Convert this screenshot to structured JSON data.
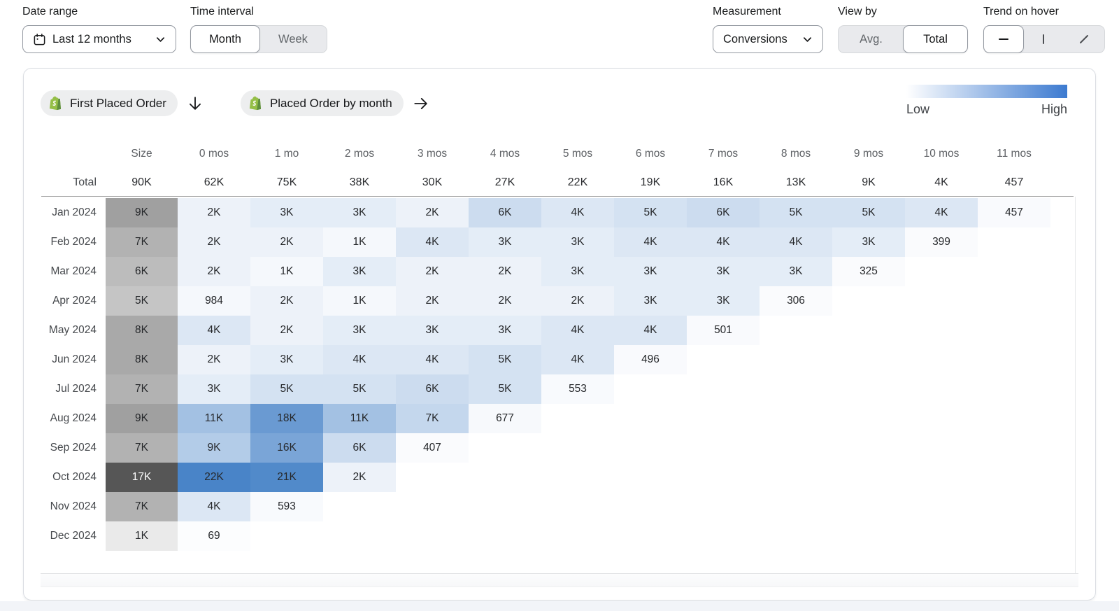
{
  "topbar": {
    "date_range": {
      "label": "Date range",
      "value": "Last 12 months"
    },
    "time_interval": {
      "label": "Time interval",
      "month": "Month",
      "week": "Week",
      "selected": "Month"
    },
    "measurement": {
      "label": "Measurement",
      "value": "Conversions"
    },
    "view_by": {
      "label": "View by",
      "avg": "Avg.",
      "total": "Total",
      "selected": "Total"
    },
    "trend_on_hover": {
      "label": "Trend on hover",
      "options": [
        "line",
        "bar",
        "slope"
      ],
      "selected": "line"
    }
  },
  "panel": {
    "cohort_chip": "First Placed Order",
    "event_chip": "Placed Order by month",
    "legend": {
      "low": "Low",
      "high": "High",
      "gradient_from": "#ffffff",
      "gradient_to": "#3c7ad0"
    }
  },
  "chart_data": {
    "type": "heatmap",
    "columns": [
      "Size",
      "0 mos",
      "1 mo",
      "2 mos",
      "3 mos",
      "4 mos",
      "5 mos",
      "6 mos",
      "7 mos",
      "8 mos",
      "9 mos",
      "10 mos",
      "11 mos"
    ],
    "total_label": "Total",
    "totals": [
      "90K",
      "62K",
      "75K",
      "38K",
      "30K",
      "27K",
      "22K",
      "19K",
      "16K",
      "13K",
      "9K",
      "4K",
      "457"
    ],
    "rows": [
      {
        "label": "Jan 2024",
        "size": "9K",
        "cells": [
          "2K",
          "3K",
          "3K",
          "2K",
          "6K",
          "4K",
          "5K",
          "6K",
          "5K",
          "5K",
          "4K",
          "457"
        ]
      },
      {
        "label": "Feb 2024",
        "size": "7K",
        "cells": [
          "2K",
          "2K",
          "1K",
          "4K",
          "3K",
          "3K",
          "4K",
          "4K",
          "4K",
          "3K",
          "399"
        ]
      },
      {
        "label": "Mar 2024",
        "size": "6K",
        "cells": [
          "2K",
          "1K",
          "3K",
          "2K",
          "2K",
          "3K",
          "3K",
          "3K",
          "3K",
          "325"
        ]
      },
      {
        "label": "Apr 2024",
        "size": "5K",
        "cells": [
          "984",
          "2K",
          "1K",
          "2K",
          "2K",
          "2K",
          "3K",
          "3K",
          "306"
        ]
      },
      {
        "label": "May 2024",
        "size": "8K",
        "cells": [
          "4K",
          "2K",
          "3K",
          "3K",
          "3K",
          "4K",
          "4K",
          "501"
        ]
      },
      {
        "label": "Jun 2024",
        "size": "8K",
        "cells": [
          "2K",
          "3K",
          "4K",
          "4K",
          "5K",
          "4K",
          "496"
        ]
      },
      {
        "label": "Jul 2024",
        "size": "7K",
        "cells": [
          "3K",
          "5K",
          "5K",
          "6K",
          "5K",
          "553"
        ]
      },
      {
        "label": "Aug 2024",
        "size": "9K",
        "cells": [
          "11K",
          "18K",
          "11K",
          "7K",
          "677"
        ]
      },
      {
        "label": "Sep 2024",
        "size": "7K",
        "cells": [
          "9K",
          "16K",
          "6K",
          "407"
        ]
      },
      {
        "label": "Oct 2024",
        "size": "17K",
        "cells": [
          "22K",
          "21K",
          "2K"
        ]
      },
      {
        "label": "Nov 2024",
        "size": "7K",
        "cells": [
          "4K",
          "593"
        ]
      },
      {
        "label": "Dec 2024",
        "size": "1K",
        "cells": [
          "69"
        ]
      }
    ],
    "scale": {
      "size_low": "#f3f3f3",
      "size_high": "#565656",
      "size_max": 17000,
      "cell_low": "#fdfdfe",
      "cell_high": "#4984c8",
      "cell_max": 22000,
      "white_text_threshold": 0.75
    }
  }
}
